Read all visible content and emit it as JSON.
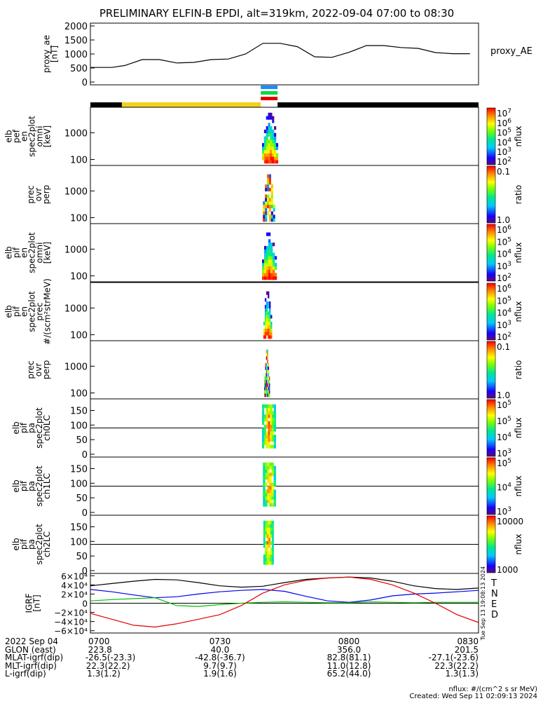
{
  "title": "PRELIMINARY ELFIN-B EPDI, alt=319km, 2022-09-04 07:00 to 08:30",
  "colors": {
    "ae_line": "#000000",
    "segment_black": "#000000",
    "segment_yellow": "#f2d21b",
    "science_blue": "#1e8cff",
    "science_green": "#00dd44",
    "science_red": "#e00000",
    "grf_T": "#000000",
    "grf_N": "#0000ee",
    "grf_E": "#00c000",
    "grf_D": "#e00000"
  },
  "chart_data": [
    {
      "type": "line",
      "name": "proxy_ae",
      "ylabel": "proxy_ae\n[nT]",
      "legend": "proxy_AE",
      "ylim": [
        -100,
        2100
      ],
      "yticks": [
        "0",
        "500",
        "1000",
        "1500",
        "2000"
      ],
      "x_minutes": [
        0,
        5,
        8,
        12,
        16,
        20,
        24,
        28,
        32,
        36,
        40,
        44,
        48,
        52,
        56,
        60,
        64,
        68,
        72,
        76,
        80,
        84,
        88
      ],
      "values": [
        520,
        520,
        590,
        800,
        800,
        680,
        700,
        800,
        820,
        1000,
        1380,
        1380,
        1260,
        900,
        880,
        1060,
        1300,
        1300,
        1230,
        1200,
        1050,
        1010,
        1010
      ]
    },
    {
      "type": "bar",
      "name": "segment_bar",
      "segments": [
        {
          "from": 0,
          "to": 7.3,
          "color": "black"
        },
        {
          "from": 7.3,
          "to": 39.5,
          "color": "yellow"
        },
        {
          "from": 39.5,
          "to": 43.4,
          "color": "white"
        },
        {
          "from": 43.4,
          "to": 90,
          "color": "black"
        }
      ],
      "science_zone": {
        "from": 39.5,
        "to": 43.4
      }
    },
    {
      "type": "heatmap",
      "name": "elb_pef_en_spec2plot_omni",
      "ylabel": "elb\npef\nen\nspec2plot\nomni\n[keV]",
      "yscale": "log",
      "yticks": [
        "100",
        "1000"
      ],
      "cbar_ticks": [
        "10^2",
        "10^3",
        "10^4",
        "10^5",
        "10^6",
        "10^7"
      ],
      "cbar_label": "nflux",
      "x_range_minutes": [
        39.8,
        43.5
      ],
      "shape": "energy"
    },
    {
      "type": "heatmap",
      "name": "prec_ovr_perp_e",
      "ylabel": "prec\novr\nperp",
      "yscale": "log",
      "yticks": [
        "100",
        "1000"
      ],
      "cbar_ticks": [
        "1.0",
        "0.1"
      ],
      "cbar_label": "ratio",
      "x_range_minutes": [
        40.0,
        42.8
      ],
      "shape": "ratio"
    },
    {
      "type": "heatmap",
      "name": "elb_pif_en_spec2plot_omni",
      "ylabel": "elb\npif\nen\nspec2plot\nomni\n[keV]",
      "yscale": "log",
      "yticks": [
        "100",
        "1000"
      ],
      "cbar_ticks": [
        "10^2",
        "10^3",
        "10^4",
        "10^5",
        "10^6"
      ],
      "cbar_label": "nflux",
      "x_range_minutes": [
        39.8,
        43.2
      ],
      "shape": "energy"
    },
    {
      "type": "heatmap",
      "name": "elb_pif_en_spec2plot_prec",
      "ylabel": "elb\npif\nen\nspec2plot\nprec\n#/(scm²strMeV)",
      "yscale": "log",
      "yticks": [
        "100",
        "1000"
      ],
      "cbar_ticks": [
        "10^2",
        "10^3",
        "10^4",
        "10^5",
        "10^6"
      ],
      "cbar_label": "nflux",
      "x_range_minutes": [
        40.1,
        42.1
      ],
      "shape": "energy"
    },
    {
      "type": "heatmap",
      "name": "prec_ovr_perp_i",
      "ylabel": "prec\novr\nperp",
      "yscale": "log",
      "yticks": [
        "100",
        "1000"
      ],
      "cbar_ticks": [
        "1.0",
        "0.1"
      ],
      "cbar_label": "ratio",
      "x_range_minutes": [
        40.3,
        41.6
      ],
      "shape": "ratio"
    },
    {
      "type": "heatmap",
      "name": "elb_pif_pa_spec2plot_ch0LC",
      "ylabel": "elb\npif\npa\nspec2plot\nch0LC",
      "ylim": [
        0,
        180
      ],
      "yticks": [
        "0",
        "50",
        "100",
        "150"
      ],
      "cbar_ticks": [
        "10^3",
        "10^4",
        "10^5",
        "10^5"
      ],
      "cbar_label": "nflux",
      "x_range_minutes": [
        39.8,
        43.0
      ],
      "shape": "pa"
    },
    {
      "type": "heatmap",
      "name": "elb_pif_pa_spec2plot_ch1LC",
      "ylabel": "elb\npif\npa\nspec2plot\nch1LC",
      "ylim": [
        0,
        180
      ],
      "yticks": [
        "0",
        "50",
        "100",
        "150"
      ],
      "cbar_ticks": [
        "10^3",
        "10^4",
        "10^5"
      ],
      "cbar_label": "nflux",
      "x_range_minutes": [
        40.0,
        43.0
      ],
      "shape": "pa"
    },
    {
      "type": "heatmap",
      "name": "elb_pif_pa_spec2plot_ch2LC",
      "ylabel": "elb\npif\npa\nspec2plot\nch2LC",
      "ylim": [
        0,
        180
      ],
      "yticks": [
        "0",
        "50",
        "100",
        "150"
      ],
      "cbar_ticks": [
        "1000",
        "10000"
      ],
      "cbar_label": "nflux",
      "x_range_minutes": [
        40.1,
        42.5
      ],
      "shape": "pa"
    },
    {
      "type": "line",
      "name": "IGRF",
      "ylabel": "IGRF\n[nT]",
      "ylim": [
        -65000,
        65000
      ],
      "yticks": [
        "6×10⁴",
        "4×10⁴",
        "2×10⁴",
        "0",
        "−2×10⁴",
        "−4×10⁴",
        "−6×10⁴"
      ],
      "x_minutes": [
        0,
        5,
        10,
        15,
        20,
        25,
        30,
        35,
        40,
        45,
        50,
        55,
        60,
        65,
        70,
        75,
        80,
        85,
        90
      ],
      "series": [
        {
          "name": "T",
          "values": [
            38000,
            43000,
            48000,
            52000,
            51000,
            45000,
            38000,
            35000,
            37000,
            45000,
            52000,
            55000,
            57000,
            55000,
            48000,
            38000,
            32000,
            30000,
            33000
          ]
        },
        {
          "name": "N",
          "values": [
            30000,
            25000,
            18000,
            12000,
            14000,
            20000,
            25000,
            28000,
            30000,
            26000,
            15000,
            5000,
            2000,
            7000,
            16000,
            20000,
            22000,
            25000,
            28000
          ]
        },
        {
          "name": "E",
          "values": [
            5000,
            8000,
            10000,
            12000,
            -5000,
            -7000,
            -3000,
            0,
            2000,
            3000,
            2000,
            1000,
            1000,
            3000,
            2000,
            1000,
            2000,
            2000,
            2000
          ]
        },
        {
          "name": "D",
          "values": [
            -22000,
            -35000,
            -48000,
            -52000,
            -45000,
            -35000,
            -25000,
            -5000,
            22000,
            40000,
            50000,
            55000,
            57000,
            52000,
            40000,
            22000,
            0,
            -25000,
            -42000
          ]
        }
      ],
      "side_label": "Tue Sep 13 19:08:13 2024"
    }
  ],
  "footer": {
    "rows": [
      {
        "label": "2022 Sep 04",
        "cols": [
          "0700",
          "0730",
          "0800",
          "0830"
        ]
      },
      {
        "label": "GLON (east)",
        "cols": [
          "223.8",
          "40.0",
          "356.0",
          "201.5"
        ]
      },
      {
        "label": "MLAT-igrf(dip)",
        "cols": [
          "-26.5(-23.3)",
          "-42.8(-36.7)",
          "82.8(81.1)",
          "-27.1(-23.6)"
        ]
      },
      {
        "label": "MLT-igrf(dip)",
        "cols": [
          "22.3(22.2)",
          "9.7(9.7)",
          "11.0(12.8)",
          "22.3(22.2)"
        ]
      },
      {
        "label": "L-igrf(dip)",
        "cols": [
          "1.3(1.2)",
          "1.9(1.6)",
          "65.2(44.0)",
          "1.3(1.3)"
        ]
      }
    ],
    "units_note": "nflux: #/(cm^2 s sr MeV)",
    "created": "Created: Wed Sep 11 02:09:13 2024"
  }
}
